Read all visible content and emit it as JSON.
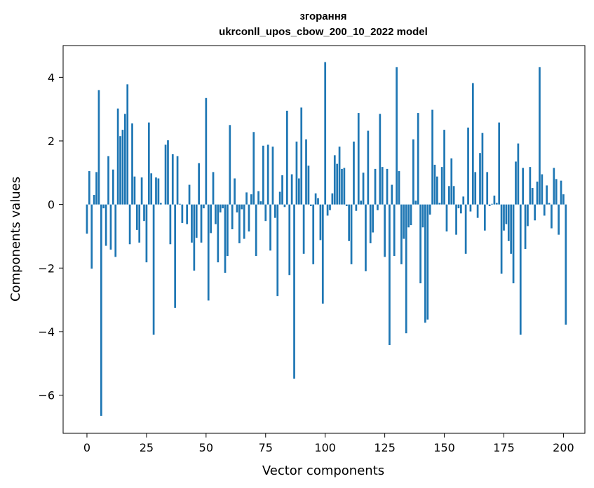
{
  "chart_data": {
    "type": "bar",
    "title": "згорання",
    "subtitle": "ukrconll_upos_cbow_200_10_2022 model",
    "xlabel": "Vector components",
    "ylabel": "Components values",
    "xlim": [
      -10,
      209
    ],
    "ylim": [
      -7.2,
      5.0
    ],
    "xticks": [
      0,
      25,
      50,
      75,
      100,
      125,
      150,
      175,
      200
    ],
    "yticks": [
      -6,
      -4,
      -2,
      0,
      2,
      4
    ],
    "bar_color": "#1f77b4",
    "grid": false,
    "values": [
      -0.92,
      1.05,
      -2.02,
      0.3,
      1.02,
      3.6,
      -6.65,
      -0.12,
      -1.3,
      1.52,
      -1.42,
      1.1,
      -1.65,
      3.02,
      2.15,
      2.35,
      2.85,
      3.78,
      -1.25,
      2.55,
      0.88,
      -0.8,
      -1.2,
      0.85,
      -0.52,
      -1.82,
      2.58,
      0.98,
      -4.1,
      0.85,
      0.82,
      0.05,
      0,
      1.88,
      2.02,
      -1.25,
      1.58,
      -3.25,
      1.52,
      0.02,
      -0.58,
      0,
      -0.62,
      0.62,
      -1.2,
      -2.08,
      -1.05,
      1.3,
      -1.2,
      -0.12,
      3.35,
      -3.02,
      -0.9,
      1.02,
      -0.62,
      -1.82,
      -0.25,
      -0.12,
      -2.15,
      -1.62,
      2.5,
      -0.78,
      0.82,
      -0.25,
      -1.22,
      -0.15,
      -1.08,
      0.38,
      -0.85,
      0.32,
      2.28,
      -1.62,
      0.42,
      0.1,
      1.85,
      -0.52,
      1.88,
      -1.45,
      1.82,
      -0.42,
      -2.88,
      0.4,
      0.92,
      -0.08,
      2.95,
      -2.22,
      0.95,
      -5.48,
      1.98,
      0.82,
      3.05,
      -1.55,
      2.05,
      1.22,
      -0.05,
      -1.88,
      0.35,
      0.2,
      -1.12,
      -3.12,
      4.48,
      -0.35,
      -0.18,
      0.35,
      1.55,
      1.28,
      1.82,
      1.12,
      1.15,
      -0.05,
      -1.15,
      -1.88,
      1.98,
      -0.2,
      2.88,
      0.12,
      1.0,
      -2.1,
      2.32,
      -1.22,
      -0.88,
      1.12,
      -0.18,
      2.85,
      1.18,
      -1.65,
      1.12,
      -4.42,
      0.62,
      -1.62,
      4.32,
      1.05,
      -1.88,
      -1.08,
      -4.05,
      -0.72,
      -0.65,
      2.05,
      0.12,
      2.88,
      -2.48,
      -0.72,
      -3.72,
      -3.62,
      -0.32,
      2.98,
      1.25,
      0.88,
      0.05,
      1.18,
      2.35,
      -0.85,
      0.58,
      1.45,
      0.58,
      -0.95,
      -0.12,
      -0.28,
      0.25,
      -1.55,
      2.42,
      -0.22,
      3.82,
      1.02,
      -0.42,
      1.62,
      2.25,
      -0.82,
      1.02,
      -0.05,
      0.02,
      0.28,
      0.05,
      2.58,
      -2.18,
      -0.82,
      -0.62,
      -1.15,
      -1.55,
      -2.48,
      1.35,
      1.92,
      -4.1,
      1.15,
      -1.4,
      -0.68,
      1.18,
      0.52,
      -0.5,
      0.72,
      4.32,
      0.95,
      -0.35,
      0.6,
      0.05,
      -0.75,
      1.15,
      0.8,
      -0.95,
      0.75,
      0.32,
      -3.78
    ]
  }
}
